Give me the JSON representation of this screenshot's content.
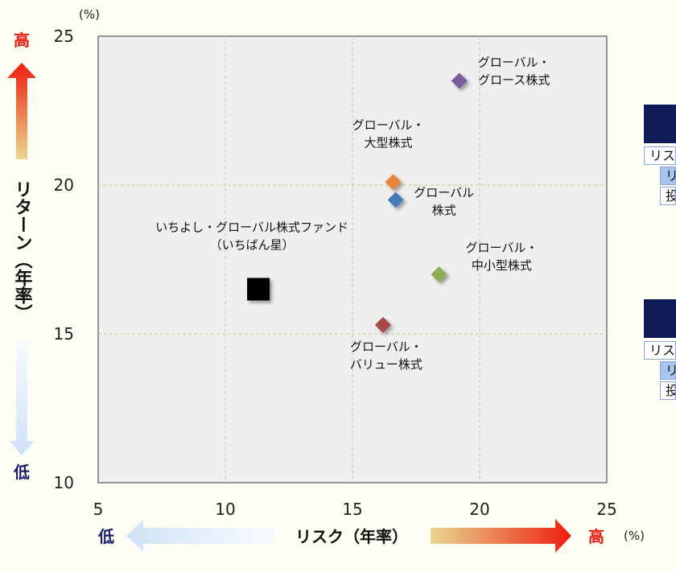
{
  "chart_data": {
    "type": "scatter",
    "x_unit": "(%)",
    "y_unit": "(%)",
    "xlim": [
      5,
      25
    ],
    "ylim": [
      10,
      25
    ],
    "x_ticks": [
      "5",
      "10",
      "15",
      "20",
      "25"
    ],
    "y_ticks": [
      "10",
      "15",
      "20",
      "25"
    ],
    "grid": true,
    "y_axis": {
      "label": "リターン（年率）",
      "high": "高",
      "low": "低"
    },
    "x_axis": {
      "label": "リスク（年率）",
      "high": "高",
      "low": "低"
    },
    "points": [
      {
        "label_lines": [
          "グローバル・",
          "グロース株式"
        ],
        "x": 19.2,
        "y": 23.5,
        "color": "#7a5a9a",
        "marker": "diamond"
      },
      {
        "label_lines": [
          "グローバル・",
          "大型株式"
        ],
        "x": 16.6,
        "y": 20.1,
        "color": "#e8863a",
        "marker": "diamond"
      },
      {
        "label_lines": [
          "グローバル",
          "株式"
        ],
        "x": 16.7,
        "y": 19.5,
        "color": "#4a7ab8",
        "marker": "diamond"
      },
      {
        "label_lines": [
          "グローバル・",
          "中小型株式"
        ],
        "x": 18.4,
        "y": 17.0,
        "color": "#8cb050",
        "marker": "diamond"
      },
      {
        "label_lines": [
          "グローバル・",
          "バリュー株式"
        ],
        "x": 16.2,
        "y": 15.3,
        "color": "#a84848",
        "marker": "diamond"
      },
      {
        "label_lines": [
          "いちよし・グローバル株式ファンド",
          "（いちばん星）"
        ],
        "x": 11.3,
        "y": 16.5,
        "color": "#000000",
        "marker": "square"
      }
    ]
  },
  "tables": [
    {
      "rows": [
        "リス",
        "リタ",
        "投"
      ]
    },
    {
      "rows": [
        "リス",
        "リタ",
        "投"
      ]
    }
  ]
}
